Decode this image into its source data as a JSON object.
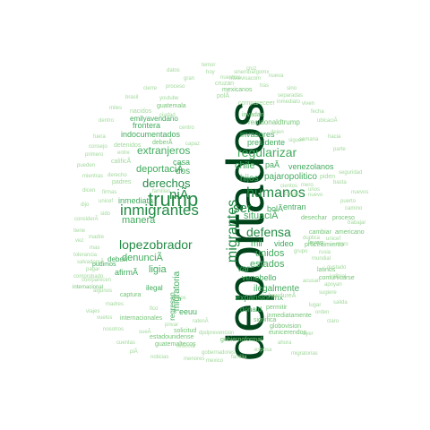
{
  "colors": {
    "background": "#ffffff",
    "dark": "#00441b",
    "green": "#238b45",
    "mid": "#41ab5d",
    "light": "#74c476",
    "pale": "#a1d99b"
  },
  "words": [
    {
      "text": "deportados",
      "tier": "dark"
    },
    {
      "text": "trump",
      "tier": "green"
    },
    {
      "text": "inmigrantes",
      "tier": "green"
    },
    {
      "text": "niÃ",
      "tier": "green"
    },
    {
      "text": "migrantes",
      "tier": "green"
    },
    {
      "text": "humanos",
      "tier": "green"
    },
    {
      "text": "derechos",
      "tier": "green"
    },
    {
      "text": "lopezobrador",
      "tier": "green"
    },
    {
      "text": "ser",
      "tier": "green"
    },
    {
      "text": "defensa",
      "tier": "green"
    },
    {
      "text": "regularizar",
      "tier": "mid"
    },
    {
      "text": "extranjeros",
      "tier": "mid"
    },
    {
      "text": "deportaciÃ",
      "tier": "mid"
    },
    {
      "text": "situaciÃ",
      "tier": "mid"
    },
    {
      "text": "denunciÃ",
      "tier": "mid"
    },
    {
      "text": "estados",
      "tier": "mid"
    },
    {
      "text": "unidos",
      "tier": "mid"
    },
    {
      "text": "mil",
      "tier": "mid"
    },
    {
      "text": "manera",
      "tier": "mid"
    },
    {
      "text": "inmediata",
      "tier": "mid"
    },
    {
      "text": "indocumentados",
      "tier": "mid"
    },
    {
      "text": "frontera",
      "tier": "mid"
    },
    {
      "text": "chile",
      "tier": "mid"
    },
    {
      "text": "paÃ",
      "tier": "mid"
    },
    {
      "text": "venezolanos",
      "tier": "mid"
    },
    {
      "text": "hijos",
      "tier": "mid"
    },
    {
      "text": "pajaropolitico",
      "tier": "mid"
    },
    {
      "text": "ligia",
      "tier": "mid"
    },
    {
      "text": "afirmÃ",
      "tier": "mid"
    },
    {
      "text": "migratoria",
      "tier": "mid"
    },
    {
      "text": "ilegalmente",
      "tier": "mid"
    },
    {
      "text": "venebello",
      "tier": "mid"
    },
    {
      "text": "expansionmx",
      "tier": "mid"
    },
    {
      "text": "presidente",
      "tier": "mid"
    },
    {
      "text": "invasores",
      "tier": "mid"
    },
    {
      "text": "dos",
      "tier": "mid"
    },
    {
      "text": "casa",
      "tier": "mid"
    },
    {
      "text": "bolÃ",
      "tier": "mid"
    },
    {
      "text": "entran",
      "tier": "mid"
    },
    {
      "text": "var",
      "tier": "mid"
    },
    {
      "text": "video",
      "tier": "mid"
    },
    {
      "text": "donald",
      "tier": "mid"
    },
    {
      "text": "eeuu",
      "tier": "mid"
    },
    {
      "text": "ilegal",
      "tier": "mid"
    },
    {
      "text": "regresan",
      "tier": "mid"
    },
    {
      "text": "deben",
      "tier": "mid"
    },
    {
      "text": "pudimos",
      "tier": "mid"
    },
    {
      "text": "captura",
      "tier": "light"
    },
    {
      "text": "internacionales",
      "tier": "light"
    },
    {
      "text": "solicitud",
      "tier": "light"
    },
    {
      "text": "emilyavendano",
      "tier": "mid"
    },
    {
      "text": "deberÃ",
      "tier": "light"
    },
    {
      "text": "realdonaldtrump",
      "tier": "light"
    },
    {
      "text": "invadan",
      "tier": "light"
    },
    {
      "text": "inmediatamente",
      "tier": "light"
    },
    {
      "text": "procedimiento",
      "tier": "light"
    },
    {
      "text": "cambiar",
      "tier": "light"
    },
    {
      "text": "comunicarse",
      "tier": "light"
    },
    {
      "text": "mexicanos",
      "tier": "light"
    },
    {
      "text": "guatemala",
      "tier": "light"
    },
    {
      "text": "leyes",
      "tier": "light"
    },
    {
      "text": "latinos",
      "tier": "light"
    },
    {
      "text": "desechar",
      "tier": "light"
    },
    {
      "text": "proceso",
      "tier": "light"
    },
    {
      "text": "americano",
      "tier": "light"
    },
    {
      "text": "permitir",
      "tier": "light"
    },
    {
      "text": "significa",
      "tier": "light"
    },
    {
      "text": "globovision",
      "tier": "light"
    },
    {
      "text": "eunicerendon",
      "tier": "light"
    },
    {
      "text": "gobiernoformal",
      "tier": "light"
    },
    {
      "text": "guatemaltecos",
      "tier": "light"
    },
    {
      "text": "estadounidense",
      "tier": "light"
    },
    {
      "text": "internacional",
      "tier": "light"
    },
    {
      "text": "comprobado",
      "tier": "pale"
    },
    {
      "text": "hondureÃ",
      "tier": "pale"
    },
    {
      "text": "tolerancia",
      "tier": "pale"
    },
    {
      "text": "familias",
      "tier": "pale"
    },
    {
      "text": "cientos",
      "tier": "pale"
    },
    {
      "text": "mundial",
      "tier": "pale"
    },
    {
      "text": "judicial",
      "tier": "pale"
    },
    {
      "text": "piden",
      "tier": "pale"
    },
    {
      "text": "basta",
      "tier": "pale"
    },
    {
      "text": "cruzan",
      "tier": "pale"
    },
    {
      "text": "polÃ",
      "tier": "pale"
    },
    {
      "text": "capaz",
      "tier": "pale"
    },
    {
      "text": "nacidos",
      "tier": "pale"
    },
    {
      "text": "compareceer",
      "tier": "pale"
    },
    {
      "text": "semana",
      "tier": "pale"
    },
    {
      "text": "siguen",
      "tier": "pale"
    },
    {
      "text": "dejen",
      "tier": "pale"
    },
    {
      "text": "firmas",
      "tier": "pale"
    },
    {
      "text": "unicef",
      "tier": "pale"
    },
    {
      "text": "calificÃ",
      "tier": "pale"
    },
    {
      "text": "detenidos",
      "tier": "pale"
    },
    {
      "text": "padres",
      "tier": "pale"
    },
    {
      "text": "dicen",
      "tier": "pale"
    },
    {
      "text": "entre",
      "tier": "pale"
    },
    {
      "text": "mero",
      "tier": "pale"
    },
    {
      "text": "nuevo",
      "tier": "pale"
    },
    {
      "text": "nuestras",
      "tier": "pale"
    },
    {
      "text": "youtube",
      "tier": "pale"
    },
    {
      "text": "ntelevisacom",
      "tier": "pale"
    },
    {
      "text": "sinembargomx",
      "tier": "pale"
    },
    {
      "text": "proceso",
      "tier": "pale"
    },
    {
      "text": "ciudad",
      "tier": "pale"
    },
    {
      "text": "separadas",
      "tier": "pale"
    },
    {
      "text": "inmediato",
      "tier": "pale"
    },
    {
      "text": "derecho",
      "tier": "pale"
    },
    {
      "text": "dpdprevencion",
      "tier": "pale"
    },
    {
      "text": "acusan",
      "tier": "pale"
    },
    {
      "text": "sugiere",
      "tier": "pale"
    },
    {
      "text": "apoyan",
      "tier": "pale"
    },
    {
      "text": "orden",
      "tier": "pale"
    },
    {
      "text": "ratenÃ",
      "tier": "pale"
    },
    {
      "text": "privar",
      "tier": "pale"
    },
    {
      "text": "fico",
      "tier": "pale"
    },
    {
      "text": "juicios",
      "tier": "pale"
    },
    {
      "text": "madres",
      "tier": "pale"
    },
    {
      "text": "algunos",
      "tier": "pale"
    },
    {
      "text": "comparecen",
      "tier": "pale"
    },
    {
      "text": "considerÃ",
      "tier": "pale"
    },
    {
      "text": "sueÃ",
      "tier": "pale"
    },
    {
      "text": "nosotros",
      "tier": "pale"
    },
    {
      "text": "migratorias",
      "tier": "pale"
    },
    {
      "text": "gobernadores",
      "tier": "pale"
    },
    {
      "text": "reforma",
      "tier": "pale"
    },
    {
      "text": "unos",
      "tier": "pale"
    },
    {
      "text": "unicef",
      "tier": "pale"
    },
    {
      "text": "duplica",
      "tier": "pale"
    },
    {
      "text": "rusia",
      "tier": "pale"
    },
    {
      "text": "muro",
      "tier": "pale"
    },
    {
      "text": "gustado",
      "tier": "pale"
    },
    {
      "text": "lugar",
      "tier": "pale"
    },
    {
      "text": "puerto",
      "tier": "pale"
    },
    {
      "text": "camino",
      "tier": "pale"
    },
    {
      "text": "seguridad",
      "tier": "pale"
    },
    {
      "text": "mientras",
      "tier": "pale"
    },
    {
      "text": "pueden",
      "tier": "pale"
    },
    {
      "text": "primero",
      "tier": "pale"
    },
    {
      "text": "consejo",
      "tier": "pale"
    },
    {
      "text": "fuera",
      "tier": "pale"
    },
    {
      "text": "dijo",
      "tier": "pale"
    },
    {
      "text": "tiene",
      "tier": "pale"
    },
    {
      "text": "vez",
      "tier": "pale"
    },
    {
      "text": "mas",
      "tier": "pale"
    },
    {
      "text": "gran",
      "tier": "pale"
    },
    {
      "text": "hoy",
      "tier": "pale"
    },
    {
      "text": "tras",
      "tier": "pale"
    },
    {
      "text": "sino",
      "tier": "pale"
    },
    {
      "text": "viven",
      "tier": "pale"
    },
    {
      "text": "fecha",
      "tier": "pale"
    },
    {
      "text": "ubicaciÃ",
      "tier": "pale"
    },
    {
      "text": "salvadoreÃ",
      "tier": "pale"
    },
    {
      "text": "pagar",
      "tier": "pale"
    },
    {
      "text": "madre",
      "tier": "pale"
    },
    {
      "text": "viajes",
      "tier": "pale"
    },
    {
      "text": "vuelos",
      "tier": "pale"
    },
    {
      "text": "cuentas",
      "tier": "pale"
    },
    {
      "text": "piÃ",
      "tier": "pale"
    },
    {
      "text": "noticias",
      "tier": "pale"
    },
    {
      "text": "menores",
      "tier": "pale"
    },
    {
      "text": "mexico",
      "tier": "pale"
    },
    {
      "text": "familia",
      "tier": "pale"
    },
    {
      "text": "esposa",
      "tier": "pale"
    },
    {
      "text": "ahora",
      "tier": "pale"
    },
    {
      "text": "ayer",
      "tier": "pale"
    },
    {
      "text": "claro",
      "tier": "pale"
    },
    {
      "text": "salida",
      "tier": "pale"
    },
    {
      "text": "trabajar",
      "tier": "pale"
    },
    {
      "text": "nuevos",
      "tier": "pale"
    },
    {
      "text": "hacia",
      "tier": "pale"
    },
    {
      "text": "parte",
      "tier": "pale"
    },
    {
      "text": "dentro",
      "tier": "pale"
    },
    {
      "text": "miles",
      "tier": "pale"
    },
    {
      "text": "brasil",
      "tier": "pale"
    },
    {
      "text": "cierre",
      "tier": "pale"
    },
    {
      "text": "temor",
      "tier": "pale"
    },
    {
      "text": "cruz",
      "tier": "pale"
    },
    {
      "text": "nueva",
      "tier": "pale"
    },
    {
      "text": "datos",
      "tier": "pale"
    },
    {
      "text": "centro",
      "tier": "pale"
    },
    {
      "text": "sido",
      "tier": "pale"
    },
    {
      "text": "casos",
      "tier": "pale"
    },
    {
      "text": "grupo",
      "tier": "pale"
    }
  ]
}
